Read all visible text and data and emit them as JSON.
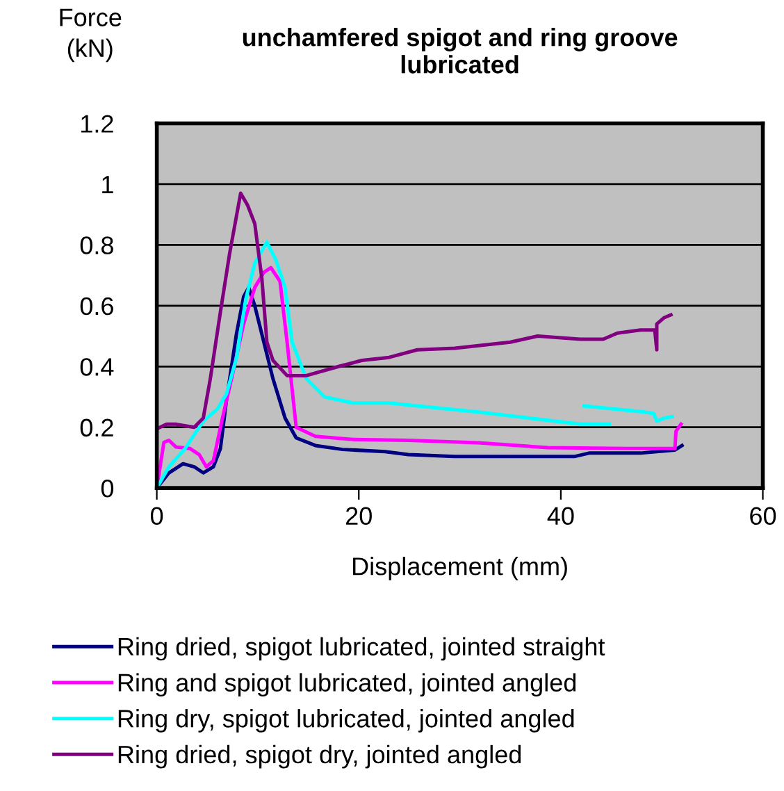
{
  "chart_data": {
    "type": "line",
    "title": "unchamfered spigot and ring groove\nlubricated",
    "xlabel": "Displacement (mm)",
    "ylabel": "Force\n(kN)",
    "xlim": [
      0,
      60
    ],
    "xticks": [
      0,
      20,
      40,
      60
    ],
    "ylim": [
      0,
      1.2
    ],
    "yticks": [
      0,
      0.2,
      0.4,
      0.6,
      0.8,
      1,
      1.2
    ],
    "grid": "y",
    "legend": "bottom",
    "marker": "none",
    "line_style": "solid",
    "series": [
      {
        "name": "Ring dried, spigot lubricated, jointed straight",
        "color": "#000080",
        "x": [
          0,
          1.2,
          2.6,
          3.7,
          4.6,
          5.6,
          6.3,
          6.9,
          7.9,
          8.6,
          9.1,
          9.7,
          10.6,
          11.5,
          12.7,
          13.8,
          15.7,
          18.4,
          22.6,
          24.9,
          29.5,
          41.4,
          42.8,
          47.9,
          51.3,
          52.0
        ],
        "values": [
          0,
          0.05,
          0.08,
          0.07,
          0.05,
          0.07,
          0.13,
          0.29,
          0.51,
          0.63,
          0.66,
          0.6,
          0.48,
          0.36,
          0.23,
          0.165,
          0.14,
          0.127,
          0.12,
          0.11,
          0.104,
          0.104,
          0.115,
          0.115,
          0.125,
          0.14
        ]
      },
      {
        "name": "Ring and spigot lubricated, jointed angled",
        "color": "#ff00ff",
        "x": [
          0,
          0.7,
          1.2,
          1.9,
          3.3,
          4.2,
          4.9,
          5.6,
          6.5,
          7.4,
          8.6,
          9.7,
          10.6,
          11.3,
          12.2,
          12.9,
          13.8,
          15.7,
          19.4,
          24.9,
          31.8,
          38.7,
          46.5,
          51.3,
          51.4,
          51.9
        ],
        "values": [
          0,
          0.15,
          0.157,
          0.135,
          0.13,
          0.11,
          0.07,
          0.09,
          0.23,
          0.36,
          0.54,
          0.66,
          0.71,
          0.725,
          0.68,
          0.48,
          0.2,
          0.17,
          0.16,
          0.157,
          0.149,
          0.133,
          0.13,
          0.13,
          0.187,
          0.21
        ]
      },
      {
        "name": "Ring dry, spigot lubricated, jointed angled",
        "color": "#00ffff",
        "x": [
          0,
          1.2,
          2.8,
          4.6,
          6.0,
          6.9,
          7.9,
          8.8,
          9.7,
          10.9,
          11.8,
          12.7,
          13.4,
          14.8,
          16.6,
          19.4,
          23,
          25.8,
          31.8,
          42.0,
          44.8,
          null,
          42.3,
          48.3,
          49.2,
          49.5,
          50.2,
          51.0
        ],
        "values": [
          0,
          0.07,
          0.13,
          0.22,
          0.26,
          0.31,
          0.43,
          0.62,
          0.74,
          0.81,
          0.75,
          0.66,
          0.48,
          0.36,
          0.3,
          0.28,
          0.28,
          0.27,
          0.25,
          0.21,
          0.21,
          null,
          0.27,
          0.25,
          0.245,
          0.22,
          0.23,
          0.235
        ]
      },
      {
        "name": "Ring dried, spigot dry, jointed angled",
        "color": "#800080",
        "x": [
          0,
          0.97,
          1.9,
          3.7,
          4.6,
          5.3,
          6.3,
          7.2,
          8.3,
          9.0,
          9.7,
          10.4,
          10.9,
          11.5,
          12.9,
          14.8,
          18.0,
          20.3,
          23,
          25.8,
          29.5,
          35.0,
          37.7,
          41.9,
          44.2,
          45.6,
          47.9,
          49.3,
          49.5,
          49.5,
          50.2,
          50.9
        ],
        "values": [
          0.195,
          0.21,
          0.21,
          0.2,
          0.23,
          0.36,
          0.58,
          0.77,
          0.97,
          0.93,
          0.87,
          0.69,
          0.48,
          0.42,
          0.37,
          0.37,
          0.4,
          0.42,
          0.43,
          0.455,
          0.46,
          0.48,
          0.5,
          0.49,
          0.49,
          0.51,
          0.52,
          0.52,
          0.455,
          0.54,
          0.56,
          0.57
        ]
      }
    ]
  }
}
